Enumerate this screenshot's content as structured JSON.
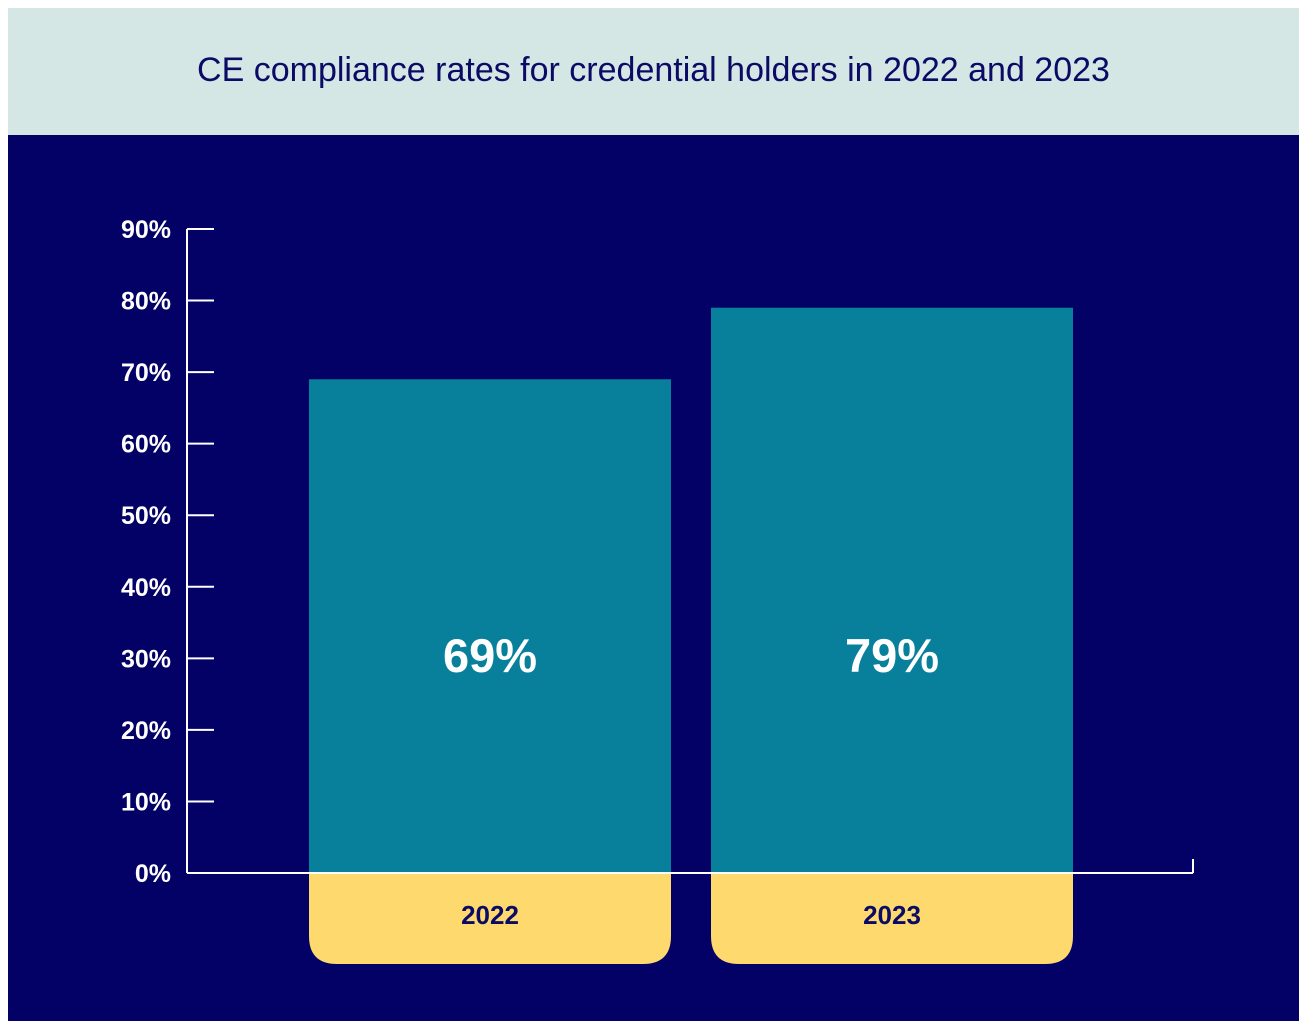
{
  "colors": {
    "title_band": "#d4e7e4",
    "title_text": "#0b0b66",
    "chart_bg": "#030066",
    "bar": "#087f9b",
    "category_pill": "#fed96e",
    "category_text": "#0b0b66",
    "axis": "#ffffff",
    "value_label": "#ffffff"
  },
  "chart_data": {
    "type": "bar",
    "title": "CE compliance rates for credential holders in 2022 and 2023",
    "categories": [
      "2022",
      "2023"
    ],
    "values": [
      69,
      79
    ],
    "value_labels": [
      "69%",
      "79%"
    ],
    "ylim": [
      0,
      90
    ],
    "yticks": [
      0,
      10,
      20,
      30,
      40,
      50,
      60,
      70,
      80,
      90
    ],
    "ytick_labels": [
      "0%",
      "10%",
      "20%",
      "30%",
      "40%",
      "50%",
      "60%",
      "70%",
      "80%",
      "90%"
    ],
    "grid": false,
    "xlabel": "",
    "ylabel": ""
  }
}
